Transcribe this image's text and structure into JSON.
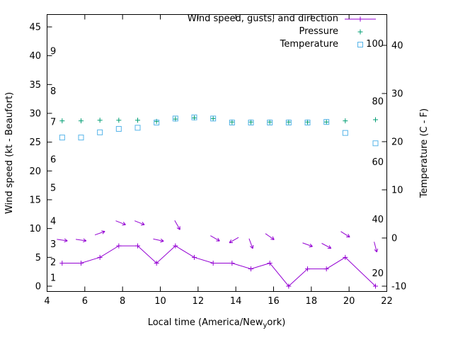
{
  "figure": {
    "xlabel_prefix": "Local time (America/New",
    "xlabel_subscript": "y",
    "xlabel_suffix": "ork)",
    "ylabel_left": "Wind speed (kt - Beaufort)",
    "ylabel_right": "Temperature (C - F)"
  },
  "colors": {
    "wind": "#9400d3",
    "pressure": "#009e73",
    "temperature": "#56b4e9",
    "axis": "#000000",
    "background": "#ffffff"
  },
  "chart_data": {
    "type": "line",
    "title": "",
    "xlabel": "Local time (America/New_york)",
    "ylabel_left": "Wind speed (kt - Beaufort)",
    "ylabel_right": "Temperature (C - F)",
    "xlim": [
      4,
      22
    ],
    "ylim_left": [
      0,
      45
    ],
    "x_ticks": [
      4,
      6,
      8,
      10,
      12,
      14,
      16,
      18,
      20,
      22
    ],
    "y_left_ticks": [
      0,
      5,
      10,
      15,
      20,
      25,
      30,
      35,
      40,
      45
    ],
    "y_right_ticks_C": [
      -10,
      0,
      10,
      20,
      30,
      40
    ],
    "beaufort_inner_labels": [
      {
        "text": "1",
        "kt": 1.5
      },
      {
        "text": "2",
        "kt": 4.2
      },
      {
        "text": "3",
        "kt": 7.3
      },
      {
        "text": "4",
        "kt": 11.3
      },
      {
        "text": "5",
        "kt": 17.1
      },
      {
        "text": "6",
        "kt": 22.0
      },
      {
        "text": "7",
        "kt": 28.5
      },
      {
        "text": "8",
        "kt": 33.9
      },
      {
        "text": "9",
        "kt": 40.8
      }
    ],
    "fahrenheit_inner_labels": [
      {
        "text": "20",
        "kt": 2.3
      },
      {
        "text": "40",
        "kt": 11.6
      },
      {
        "text": "60",
        "kt": 21.6
      },
      {
        "text": "80",
        "kt": 32.1
      },
      {
        "text": "100",
        "kt": 42.1
      }
    ],
    "legend": {
      "position": "top-right-inside",
      "entries": [
        "Wind speed, gusts, and direction",
        "Pressure",
        "Temperature"
      ]
    },
    "series": [
      {
        "name": "Wind speed, gusts, and direction",
        "color": "#9400d3",
        "marker": "plus",
        "line": true,
        "x": [
          4.8,
          5.8,
          6.8,
          7.8,
          8.8,
          9.8,
          10.8,
          11.8,
          12.8,
          13.8,
          14.8,
          15.8,
          16.8,
          17.8,
          18.8,
          19.8,
          21.4
        ],
        "y": [
          4,
          4,
          5,
          7,
          7,
          4,
          7,
          5,
          4,
          4,
          3,
          4,
          0,
          3,
          3,
          5,
          0
        ]
      },
      {
        "name": "Pressure",
        "color": "#009e73",
        "marker": "plus",
        "line": false,
        "x": [
          4.8,
          5.8,
          6.8,
          7.8,
          8.8,
          9.8,
          10.8,
          11.8,
          12.8,
          13.8,
          14.8,
          15.8,
          16.8,
          17.8,
          18.8,
          19.8,
          21.4
        ],
        "y": [
          28.7,
          28.7,
          28.8,
          28.8,
          28.8,
          28.6,
          29.0,
          29.2,
          29.1,
          28.5,
          28.5,
          28.5,
          28.5,
          28.5,
          28.5,
          28.7,
          28.9
        ]
      },
      {
        "name": "Temperature",
        "color": "#56b4e9",
        "marker": "square",
        "line": false,
        "x": [
          4.8,
          5.8,
          6.8,
          7.8,
          8.8,
          9.8,
          10.8,
          11.8,
          12.8,
          13.8,
          14.8,
          15.8,
          16.8,
          17.8,
          18.8,
          19.8,
          21.4
        ],
        "y": [
          25.8,
          25.8,
          26.7,
          27.3,
          27.5,
          28.4,
          29.1,
          29.3,
          29.1,
          28.4,
          28.4,
          28.4,
          28.4,
          28.4,
          28.5,
          26.6,
          24.8
        ],
        "values_C": [
          21,
          21,
          22,
          22.5,
          23,
          24,
          24.5,
          25,
          24.5,
          24,
          24,
          24,
          24,
          24,
          24,
          22,
          19.5
        ]
      }
    ],
    "wind_arrows": [
      {
        "x": 4.8,
        "kt": 8.0,
        "angle": 8
      },
      {
        "x": 5.8,
        "kt": 8.0,
        "angle": 8
      },
      {
        "x": 6.8,
        "kt": 9.2,
        "angle": -20
      },
      {
        "x": 7.9,
        "kt": 11.0,
        "angle": 22
      },
      {
        "x": 8.9,
        "kt": 11.0,
        "angle": 22
      },
      {
        "x": 9.9,
        "kt": 8.0,
        "angle": 12
      },
      {
        "x": 10.9,
        "kt": 10.6,
        "angle": 60
      },
      {
        "x": 12.9,
        "kt": 8.3,
        "angle": 30
      },
      {
        "x": 13.9,
        "kt": 8.0,
        "angle": 150
      },
      {
        "x": 14.8,
        "kt": 7.4,
        "angle": 70
      },
      {
        "x": 15.8,
        "kt": 8.6,
        "angle": 35
      },
      {
        "x": 17.8,
        "kt": 7.2,
        "angle": 20
      },
      {
        "x": 18.8,
        "kt": 7.0,
        "angle": 28
      },
      {
        "x": 19.8,
        "kt": 9.0,
        "angle": 32
      },
      {
        "x": 21.4,
        "kt": 6.8,
        "angle": 75
      }
    ]
  }
}
